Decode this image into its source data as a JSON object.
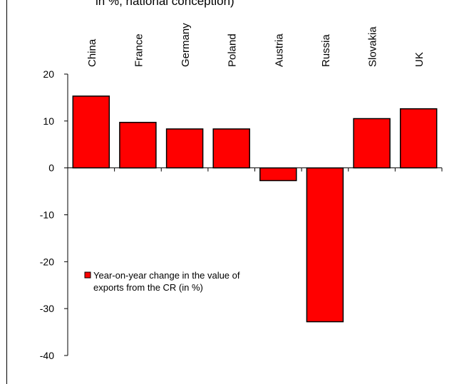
{
  "partial_title": "in %, national conception)",
  "chart_data": {
    "type": "bar",
    "categories": [
      "China",
      "France",
      "Germany",
      "Poland",
      "Austria",
      "Russia",
      "Slovakia",
      "UK"
    ],
    "series": [
      {
        "name": "Year-on-year change in the value of exports from the CR (in %)",
        "values": [
          15.3,
          9.7,
          8.3,
          8.3,
          -2.7,
          -32.8,
          10.5,
          12.6
        ]
      }
    ],
    "ylim": [
      -40,
      20
    ],
    "yticks": [
      20,
      10,
      0,
      -10,
      -20,
      -30,
      -40
    ],
    "legend": {
      "line1": "Year-on-year change in the value of",
      "line2": "exports from the CR (in %)",
      "placement": "lower-left"
    },
    "bar_color": "#ff0000",
    "grid": false
  }
}
